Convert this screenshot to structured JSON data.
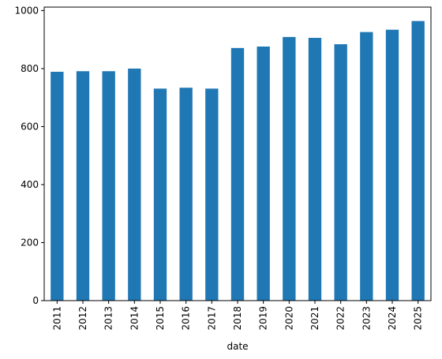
{
  "chart_data": {
    "type": "bar",
    "categories": [
      "2011",
      "2012",
      "2013",
      "2014",
      "2015",
      "2016",
      "2017",
      "2018",
      "2019",
      "2020",
      "2021",
      "2022",
      "2023",
      "2024",
      "2025"
    ],
    "values": [
      789,
      791,
      791,
      800,
      731,
      734,
      731,
      871,
      876,
      909,
      906,
      884,
      926,
      934,
      964
    ],
    "xlabel": "date",
    "ylabel": "",
    "ylim": [
      0,
      1012
    ],
    "yticks": [
      0,
      200,
      400,
      600,
      800,
      1000
    ],
    "grid": false,
    "bar_color": "#1f77b4"
  }
}
